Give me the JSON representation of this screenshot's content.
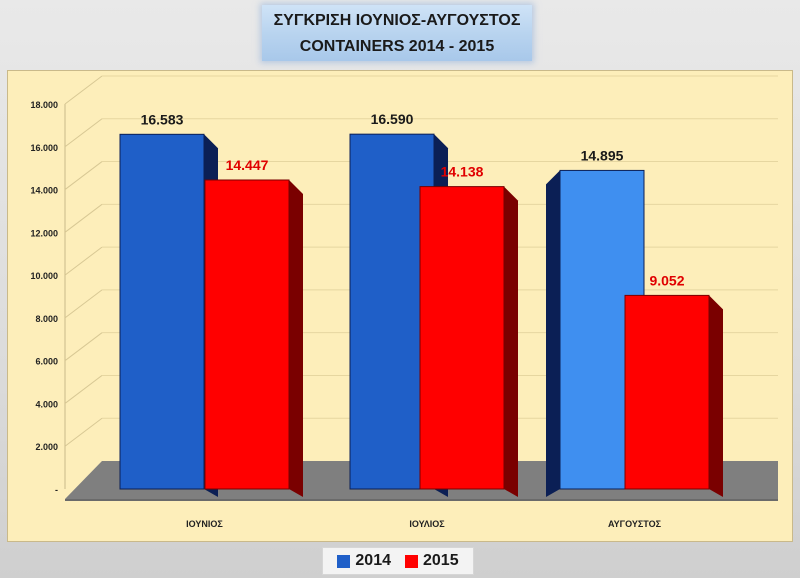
{
  "chart_data": {
    "type": "bar",
    "title_lines": [
      "ΣΥΓΚΡΙΣΗ ΙΟΥΝΙΟΣ-ΑΥΓΟΥΣΤΟΣ",
      "CONTAINERS 2014 - 2015"
    ],
    "categories": [
      "ΙΟΥΝΙΟΣ",
      "ΙΟΥΛΙΟΣ",
      "ΑΥΓΟΥΣΤΟΣ"
    ],
    "series": [
      {
        "name": "2014",
        "values": [
          16583,
          16590,
          14895
        ],
        "labels": [
          "16.583",
          "16.590",
          "14.895"
        ],
        "color": "#1f5fc8",
        "label_color": "#1a1a1a"
      },
      {
        "name": "2015",
        "values": [
          14447,
          14138,
          9052
        ],
        "labels": [
          "14.447",
          "14.138",
          "9.052"
        ],
        "color": "#ff0000",
        "label_color": "#e00000"
      }
    ],
    "y_ticks": [
      "-",
      "2.000",
      "4.000",
      "6.000",
      "8.000",
      "10.000",
      "12.000",
      "14.000",
      "16.000",
      "18.000"
    ],
    "ylim": [
      0,
      18000
    ],
    "grid": true,
    "legend_position": "bottom"
  }
}
